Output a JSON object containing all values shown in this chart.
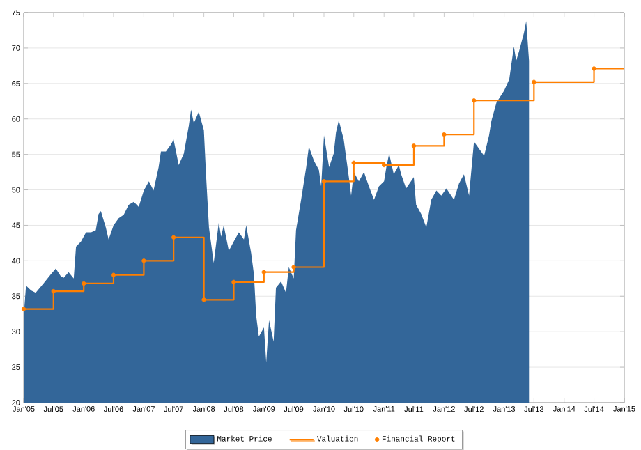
{
  "chart_data": {
    "type": "area",
    "xlim": [
      "2005-01",
      "2015-01"
    ],
    "xticks": [
      {
        "value": "2005-01",
        "label": "Jan'05"
      },
      {
        "value": "2005-07",
        "label": "Jul'05"
      },
      {
        "value": "2006-01",
        "label": "Jan'06"
      },
      {
        "value": "2006-07",
        "label": "Jul'06"
      },
      {
        "value": "2007-01",
        "label": "Jan'07"
      },
      {
        "value": "2007-07",
        "label": "Jul'07"
      },
      {
        "value": "2008-01",
        "label": "Jan'08"
      },
      {
        "value": "2008-07",
        "label": "Jul'08"
      },
      {
        "value": "2009-01",
        "label": "Jan'09"
      },
      {
        "value": "2009-07",
        "label": "Jul'09"
      },
      {
        "value": "2010-01",
        "label": "Jan'10"
      },
      {
        "value": "2010-07",
        "label": "Jul'10"
      },
      {
        "value": "2011-01",
        "label": "Jan'11"
      },
      {
        "value": "2011-07",
        "label": "Jul'11"
      },
      {
        "value": "2012-01",
        "label": "Jan'12"
      },
      {
        "value": "2012-07",
        "label": "Jul'12"
      },
      {
        "value": "2013-01",
        "label": "Jan'13"
      },
      {
        "value": "2013-07",
        "label": "Jul'13"
      },
      {
        "value": "2014-01",
        "label": "Jan'14"
      },
      {
        "value": "2014-07",
        "label": "Jul'14"
      },
      {
        "value": "2015-01",
        "label": "Jan'15"
      }
    ],
    "ylim": [
      20,
      75
    ],
    "yticks": [
      20,
      25,
      30,
      35,
      40,
      45,
      50,
      55,
      60,
      65,
      70,
      75
    ],
    "grid": "y",
    "legend": "bottom",
    "series": [
      {
        "name": "Market Price",
        "color": "#336699",
        "x": [
          "2005-01-01",
          "2005-01-15",
          "2005-02-15",
          "2005-03-15",
          "2005-05-01",
          "2005-06-15",
          "2005-07-15",
          "2005-08-15",
          "2005-09-01",
          "2005-10-01",
          "2005-11-01",
          "2005-11-15",
          "2005-12-15",
          "2006-01-15",
          "2006-02-15",
          "2006-03-15",
          "2006-04-01",
          "2006-04-15",
          "2006-05-15",
          "2006-06-01",
          "2006-07-01",
          "2006-08-01",
          "2006-09-01",
          "2006-10-01",
          "2006-11-01",
          "2006-12-01",
          "2007-01-01",
          "2007-02-01",
          "2007-03-01",
          "2007-04-01",
          "2007-04-15",
          "2007-05-15",
          "2007-06-15",
          "2007-07-01",
          "2007-08-01",
          "2007-09-01",
          "2007-10-01",
          "2007-10-15",
          "2007-11-01",
          "2007-12-01",
          "2008-01-01",
          "2008-01-15",
          "2008-02-01",
          "2008-03-01",
          "2008-04-01",
          "2008-04-15",
          "2008-05-01",
          "2008-06-01",
          "2008-07-01",
          "2008-08-01",
          "2008-09-01",
          "2008-09-15",
          "2008-10-15",
          "2008-11-01",
          "2008-11-15",
          "2008-12-01",
          "2009-01-01",
          "2009-01-15",
          "2009-02-01",
          "2009-03-01",
          "2009-03-15",
          "2009-04-15",
          "2009-05-15",
          "2009-06-01",
          "2009-07-01",
          "2009-07-15",
          "2009-08-15",
          "2009-09-15",
          "2009-10-01",
          "2009-11-01",
          "2009-12-01",
          "2009-12-15",
          "2010-01-01",
          "2010-02-01",
          "2010-03-01",
          "2010-03-15",
          "2010-04-01",
          "2010-05-01",
          "2010-06-01",
          "2010-06-15",
          "2010-07-01",
          "2010-08-01",
          "2010-09-01",
          "2010-10-01",
          "2010-11-01",
          "2010-12-01",
          "2011-01-01",
          "2011-01-15",
          "2011-02-01",
          "2011-03-01",
          "2011-04-01",
          "2011-04-15",
          "2011-05-15",
          "2011-07-01",
          "2011-07-15",
          "2011-08-15",
          "2011-09-15",
          "2011-10-15",
          "2011-11-15",
          "2011-12-15",
          "2012-01-15",
          "2012-03-01",
          "2012-04-01",
          "2012-05-01",
          "2012-06-01",
          "2012-07-01",
          "2012-08-01",
          "2012-09-01",
          "2012-10-01",
          "2012-10-15",
          "2012-11-15",
          "2013-01-01",
          "2013-02-01",
          "2013-03-01",
          "2013-03-15",
          "2013-04-01",
          "2013-05-01",
          "2013-05-15",
          "2013-06-01"
        ],
        "values": [
          32.2,
          36.5,
          35.8,
          35.5,
          36.8,
          38.1,
          38.9,
          37.8,
          37.6,
          38.4,
          37.5,
          42.0,
          42.7,
          44.0,
          44.0,
          44.3,
          46.6,
          47.0,
          44.7,
          43.0,
          45.0,
          46.0,
          46.5,
          47.9,
          48.3,
          47.6,
          49.9,
          51.2,
          49.9,
          53.2,
          55.4,
          55.4,
          56.4,
          57.1,
          53.5,
          55.1,
          59.0,
          61.3,
          59.4,
          61.0,
          58.4,
          51.8,
          44.7,
          39.7,
          45.4,
          43.4,
          45.0,
          41.4,
          42.7,
          44.0,
          43.0,
          45.0,
          41.1,
          38.1,
          32.2,
          29.3,
          30.6,
          25.7,
          31.6,
          28.6,
          36.2,
          37.1,
          35.5,
          39.1,
          37.5,
          44.3,
          48.6,
          53.2,
          56.1,
          54.1,
          52.8,
          50.5,
          57.7,
          53.2,
          55.1,
          58.1,
          59.8,
          57.1,
          51.8,
          49.2,
          52.5,
          51.2,
          52.5,
          50.5,
          48.6,
          50.5,
          51.2,
          53.2,
          55.1,
          52.2,
          53.5,
          52.2,
          50.2,
          51.8,
          47.9,
          46.6,
          44.7,
          48.6,
          49.9,
          49.2,
          50.2,
          48.6,
          50.9,
          52.2,
          49.2,
          56.8,
          55.8,
          54.8,
          57.7,
          59.7,
          62.3,
          64.0,
          65.6,
          70.2,
          68.2,
          69.5,
          72.1,
          73.8,
          68.2
        ]
      },
      {
        "name": "Valuation",
        "type": "step",
        "color": "#ff7f00",
        "marker": "none",
        "x": [
          "2005-01-01",
          "2005-07-01",
          "2006-01-01",
          "2006-07-01",
          "2007-01-01",
          "2007-07-01",
          "2008-01-01",
          "2008-07-01",
          "2009-01-01",
          "2009-07-01",
          "2010-01-01",
          "2010-07-01",
          "2011-01-01",
          "2011-07-01",
          "2012-01-01",
          "2012-07-01",
          "2013-07-01",
          "2014-07-01",
          "2015-01-01"
        ],
        "values": [
          33.2,
          35.7,
          36.8,
          38.0,
          40.0,
          43.3,
          34.5,
          37.0,
          38.4,
          39.1,
          51.2,
          53.8,
          53.5,
          56.2,
          57.8,
          62.6,
          65.2,
          67.1,
          67.1
        ]
      },
      {
        "name": "Financial Report",
        "type": "scatter",
        "color": "#ff7f00",
        "marker": "circle",
        "x": [
          "2005-01-01",
          "2005-07-01",
          "2006-01-01",
          "2006-07-01",
          "2007-01-01",
          "2007-07-01",
          "2008-01-01",
          "2008-07-01",
          "2009-01-01",
          "2009-07-01",
          "2010-01-01",
          "2010-07-01",
          "2011-01-01",
          "2011-07-01",
          "2012-01-01",
          "2012-07-01",
          "2013-07-01",
          "2014-07-01"
        ],
        "values": [
          33.2,
          35.7,
          36.8,
          38.0,
          40.0,
          43.3,
          34.5,
          37.0,
          38.4,
          39.1,
          51.2,
          53.8,
          53.5,
          56.2,
          57.8,
          62.6,
          65.2,
          67.1
        ]
      }
    ]
  }
}
